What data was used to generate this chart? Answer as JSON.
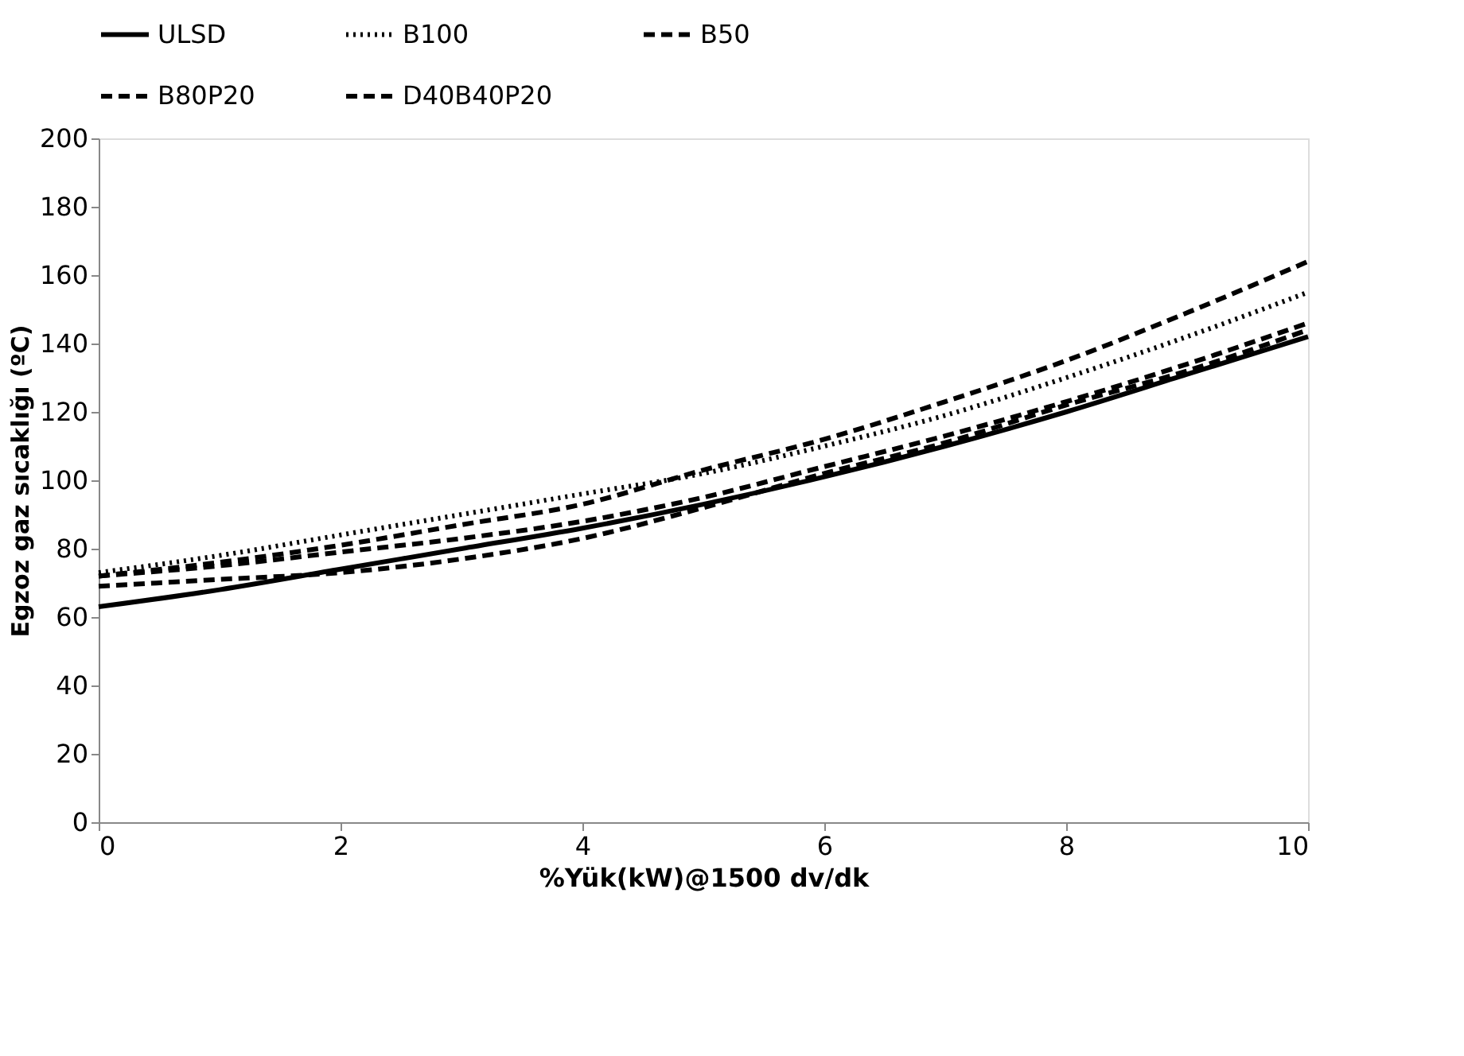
{
  "chart_data": {
    "type": "line",
    "xlabel": "%Yük(kW)@1500 dv/dk",
    "ylabel": "Egzoz gaz sıcaklığı (ºC)",
    "x": [
      0,
      1,
      2,
      3,
      4,
      5,
      6,
      7,
      8,
      9,
      10
    ],
    "series": [
      {
        "name": "ULSD",
        "color": "#000000",
        "line_style": "solid",
        "values": [
          63,
          68,
          74,
          80,
          86,
          93,
          101,
          110,
          120,
          131,
          142
        ]
      },
      {
        "name": "B100",
        "color": "#000000",
        "line_style": "dotted",
        "values": [
          73,
          78,
          84,
          90,
          96,
          102,
          110,
          119,
          130,
          142,
          155
        ]
      },
      {
        "name": "B50",
        "color": "#000000",
        "line_style": "dashed",
        "values": [
          72,
          76,
          81,
          87,
          93,
          103,
          112,
          123,
          135,
          149,
          164
        ]
      },
      {
        "name": "B80P20",
        "color": "#000000",
        "line_style": "dashed",
        "values": [
          72,
          75,
          79,
          83,
          88,
          95,
          104,
          113,
          123,
          134,
          146
        ]
      },
      {
        "name": "D40B40P20",
        "color": "#000000",
        "line_style": "dashed",
        "values": [
          69,
          71,
          73,
          77,
          83,
          92,
          102,
          111,
          122,
          132,
          144
        ]
      }
    ],
    "xlim": [
      0,
      10
    ],
    "xticks": [
      0,
      2,
      4,
      6,
      8,
      10
    ],
    "ylim": [
      0,
      200
    ],
    "yticks": [
      0,
      20,
      40,
      60,
      80,
      100,
      120,
      140,
      160,
      180,
      200
    ],
    "grid": false,
    "legend": "top",
    "marker": "none"
  }
}
